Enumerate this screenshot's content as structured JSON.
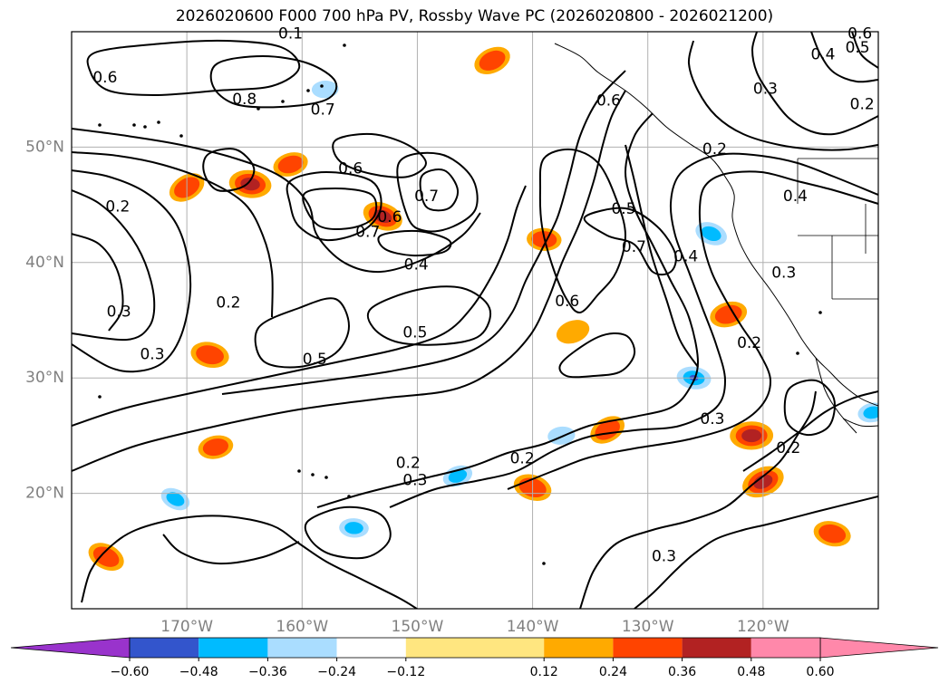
{
  "chart_data": {
    "type": "contour-map",
    "title": "2026020600 F000 700 hPa PV, Rossby Wave PC (2026020800 - 2026021200)",
    "projection": "PlateCarree",
    "lon_range": [
      -180,
      -110
    ],
    "lat_range": [
      10,
      60
    ],
    "lon_ticks": [
      -170,
      -160,
      -150,
      -140,
      -130,
      -120
    ],
    "lon_tick_labels": [
      "170°W",
      "160°W",
      "150°W",
      "140°W",
      "130°W",
      "120°W"
    ],
    "lat_ticks": [
      20,
      30,
      40,
      50
    ],
    "lat_tick_labels": [
      "20°N",
      "30°N",
      "40°N",
      "50°N"
    ],
    "grid": true,
    "contour_variable": "700 hPa PV",
    "contour_labels": [
      {
        "text": "0.6",
        "lon": -177.1,
        "lat": 56.0
      },
      {
        "text": "0.8",
        "lon": -165.0,
        "lat": 54.1
      },
      {
        "text": "0.7",
        "lon": -158.2,
        "lat": 53.2
      },
      {
        "text": "0.1",
        "lon": -161.0,
        "lat": 59.8
      },
      {
        "text": "0.6",
        "lon": -155.8,
        "lat": 48.1
      },
      {
        "text": "0.7",
        "lon": -149.2,
        "lat": 45.7
      },
      {
        "text": "0.6",
        "lon": -152.4,
        "lat": 43.9
      },
      {
        "text": "0.7",
        "lon": -154.3,
        "lat": 42.6
      },
      {
        "text": "0.2",
        "lon": -176.0,
        "lat": 44.8
      },
      {
        "text": "0.4",
        "lon": -150.1,
        "lat": 39.8
      },
      {
        "text": "0.2",
        "lon": -166.4,
        "lat": 36.5
      },
      {
        "text": "0.3",
        "lon": -175.9,
        "lat": 35.7
      },
      {
        "text": "0.3",
        "lon": -173.0,
        "lat": 32.0
      },
      {
        "text": "0.5",
        "lon": -150.2,
        "lat": 33.9
      },
      {
        "text": "0.5",
        "lon": -158.9,
        "lat": 31.6
      },
      {
        "text": "0.6",
        "lon": -133.4,
        "lat": 54.0
      },
      {
        "text": "0.5",
        "lon": -132.1,
        "lat": 44.6
      },
      {
        "text": "0.7",
        "lon": -131.2,
        "lat": 41.3
      },
      {
        "text": "0.4",
        "lon": -126.7,
        "lat": 40.5
      },
      {
        "text": "0.6",
        "lon": -137.0,
        "lat": 36.6
      },
      {
        "text": "0.2",
        "lon": -124.2,
        "lat": 49.8
      },
      {
        "text": "0.4",
        "lon": -117.2,
        "lat": 45.7
      },
      {
        "text": "0.3",
        "lon": -118.2,
        "lat": 39.1
      },
      {
        "text": "0.2",
        "lon": -121.2,
        "lat": 33.0
      },
      {
        "text": "0.3",
        "lon": -119.8,
        "lat": 55.0
      },
      {
        "text": "0.4",
        "lon": -114.8,
        "lat": 58.0
      },
      {
        "text": "0.5",
        "lon": -111.8,
        "lat": 58.6
      },
      {
        "text": "0.2",
        "lon": -111.4,
        "lat": 53.7
      },
      {
        "text": "0.6",
        "lon": -111.6,
        "lat": 59.8
      },
      {
        "text": "0.3",
        "lon": -124.4,
        "lat": 26.4
      },
      {
        "text": "0.2",
        "lon": -117.8,
        "lat": 23.9
      },
      {
        "text": "0.2",
        "lon": -150.8,
        "lat": 22.6
      },
      {
        "text": "0.3",
        "lon": -150.2,
        "lat": 21.1
      },
      {
        "text": "0.2",
        "lon": -140.9,
        "lat": 23.0
      },
      {
        "text": "0.3",
        "lon": -128.6,
        "lat": 14.5
      }
    ],
    "shading_variable": "Rossby Wave PC",
    "colorbar": {
      "orientation": "horizontal",
      "extend": "both",
      "levels": [
        -0.72,
        -0.6,
        -0.48,
        -0.36,
        -0.24,
        -0.12,
        0.12,
        0.24,
        0.36,
        0.48,
        0.6,
        0.72
      ],
      "tick_values": [
        -0.6,
        -0.48,
        -0.36,
        -0.24,
        -0.12,
        0.12,
        0.24,
        0.36,
        0.48,
        0.6
      ],
      "tick_labels": [
        "−0.60",
        "−0.48",
        "−0.36",
        "−0.24",
        "−0.12",
        "0.12",
        "0.24",
        "0.36",
        "0.48",
        "0.60"
      ],
      "colors": [
        "#9933cc",
        "#00008b",
        "#3355cc",
        "#00bbff",
        "#aaddff",
        "#ffffff",
        "#ffe680",
        "#ffaa00",
        "#ff4400",
        "#b22222",
        "#ff88aa"
      ]
    },
    "shaded_anomalies": [
      {
        "lon": -170.0,
        "lat": 46.5,
        "value": 0.3
      },
      {
        "lon": -164.5,
        "lat": 46.8,
        "value": 0.4
      },
      {
        "lon": -161.0,
        "lat": 48.5,
        "value": 0.25
      },
      {
        "lon": -153.0,
        "lat": 44.0,
        "value": 0.36
      },
      {
        "lon": -158.0,
        "lat": 55.0,
        "value": -0.28
      },
      {
        "lon": -143.5,
        "lat": 57.5,
        "value": 0.3
      },
      {
        "lon": -168.0,
        "lat": 32.0,
        "value": 0.32
      },
      {
        "lon": -167.5,
        "lat": 24.0,
        "value": 0.25
      },
      {
        "lon": -171.0,
        "lat": 19.5,
        "value": -0.38
      },
      {
        "lon": -155.5,
        "lat": 17.0,
        "value": -0.36
      },
      {
        "lon": -146.5,
        "lat": 21.5,
        "value": -0.38
      },
      {
        "lon": -140.0,
        "lat": 20.5,
        "value": 0.32
      },
      {
        "lon": -137.5,
        "lat": 25.0,
        "value": -0.3
      },
      {
        "lon": -133.5,
        "lat": 25.5,
        "value": 0.28
      },
      {
        "lon": -126.0,
        "lat": 30.0,
        "value": -0.5
      },
      {
        "lon": -123.0,
        "lat": 35.5,
        "value": 0.3
      },
      {
        "lon": -124.5,
        "lat": 42.5,
        "value": -0.45
      },
      {
        "lon": -121.0,
        "lat": 25.0,
        "value": 0.42
      },
      {
        "lon": -120.0,
        "lat": 21.0,
        "value": 0.42
      },
      {
        "lon": -114.0,
        "lat": 16.5,
        "value": 0.3
      },
      {
        "lon": -110.5,
        "lat": 27.0,
        "value": -0.36
      },
      {
        "lon": -177.0,
        "lat": 14.5,
        "value": 0.3
      },
      {
        "lon": -139.0,
        "lat": 42.0,
        "value": 0.24
      },
      {
        "lon": -136.5,
        "lat": 34.0,
        "value": 0.22
      }
    ]
  }
}
